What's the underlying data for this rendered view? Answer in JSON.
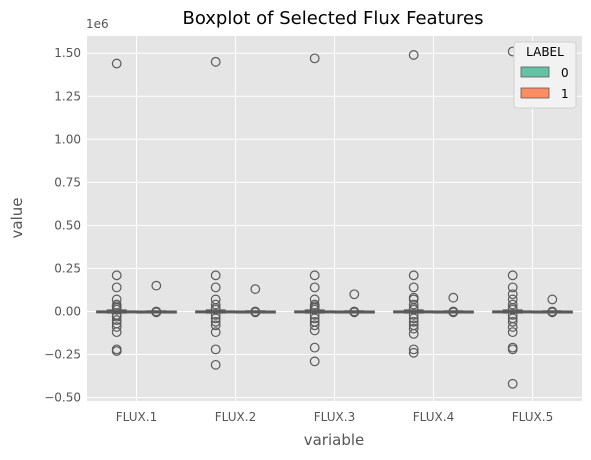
{
  "chart_data": {
    "type": "boxplot",
    "title": "Boxplot of Selected Flux Features",
    "xlabel": "variable",
    "ylabel": "value",
    "y_offset_label": "1e6",
    "ylim": [
      -0.52,
      1.6
    ],
    "yticks": [
      -0.5,
      -0.25,
      0.0,
      0.25,
      0.5,
      0.75,
      1.0,
      1.25,
      1.5
    ],
    "ytick_labels": [
      "−0.50",
      "−0.25",
      "0.00",
      "0.25",
      "0.50",
      "0.75",
      "1.00",
      "1.25",
      "1.50"
    ],
    "grid": true,
    "legend": {
      "title": "LABEL",
      "placement": "top-right",
      "entries": [
        {
          "label": "0",
          "color": "#66c2a5"
        },
        {
          "label": "1",
          "color": "#fc8d62"
        }
      ]
    },
    "categories": [
      "FLUX.1",
      "FLUX.2",
      "FLUX.3",
      "FLUX.4",
      "FLUX.5"
    ],
    "groups": [
      {
        "variable": "FLUX.1",
        "boxes": [
          {
            "label": "0",
            "q1": -0.002,
            "median": 0.0,
            "q3": 0.002,
            "whisker_low": -0.008,
            "whisker_high": 0.008,
            "outliers": [
              1.44,
              0.21,
              0.14,
              0.07,
              0.04,
              0.03,
              0.02,
              0.01,
              -0.02,
              -0.03,
              -0.05,
              -0.07,
              -0.09,
              -0.12,
              -0.22,
              -0.23
            ]
          },
          {
            "label": "1",
            "q1": -0.001,
            "median": 0.0,
            "q3": 0.001,
            "whisker_low": -0.003,
            "whisker_high": 0.003,
            "outliers": [
              0.15,
              0.0,
              -0.005
            ]
          }
        ]
      },
      {
        "variable": "FLUX.2",
        "boxes": [
          {
            "label": "0",
            "q1": -0.002,
            "median": 0.0,
            "q3": 0.002,
            "whisker_low": -0.008,
            "whisker_high": 0.008,
            "outliers": [
              1.45,
              0.21,
              0.14,
              0.07,
              0.04,
              0.02,
              0.01,
              -0.02,
              -0.04,
              -0.06,
              -0.08,
              -0.12,
              -0.22,
              -0.31
            ]
          },
          {
            "label": "1",
            "q1": -0.001,
            "median": 0.0,
            "q3": 0.001,
            "whisker_low": -0.003,
            "whisker_high": 0.003,
            "outliers": [
              0.13,
              0.0,
              -0.005
            ]
          }
        ]
      },
      {
        "variable": "FLUX.3",
        "boxes": [
          {
            "label": "0",
            "q1": -0.002,
            "median": 0.0,
            "q3": 0.002,
            "whisker_low": -0.008,
            "whisker_high": 0.008,
            "outliers": [
              1.47,
              0.21,
              0.14,
              0.07,
              0.04,
              0.03,
              0.02,
              0.01,
              -0.02,
              -0.04,
              -0.06,
              -0.08,
              -0.11,
              -0.21,
              -0.29
            ]
          },
          {
            "label": "1",
            "q1": -0.001,
            "median": 0.0,
            "q3": 0.001,
            "whisker_low": -0.003,
            "whisker_high": 0.003,
            "outliers": [
              0.1,
              0.0,
              -0.005
            ]
          }
        ]
      },
      {
        "variable": "FLUX.4",
        "boxes": [
          {
            "label": "0",
            "q1": -0.002,
            "median": 0.0,
            "q3": 0.002,
            "whisker_low": -0.008,
            "whisker_high": 0.008,
            "outliers": [
              1.49,
              0.21,
              0.14,
              0.08,
              0.07,
              0.04,
              0.02,
              0.01,
              -0.02,
              -0.04,
              -0.06,
              -0.08,
              -0.1,
              -0.13,
              -0.22,
              -0.24
            ]
          },
          {
            "label": "1",
            "q1": -0.001,
            "median": 0.0,
            "q3": 0.001,
            "whisker_low": -0.003,
            "whisker_high": 0.003,
            "outliers": [
              0.08,
              0.0,
              -0.005
            ]
          }
        ]
      },
      {
        "variable": "FLUX.5",
        "boxes": [
          {
            "label": "0",
            "q1": -0.002,
            "median": 0.0,
            "q3": 0.002,
            "whisker_low": -0.008,
            "whisker_high": 0.008,
            "outliers": [
              1.51,
              0.21,
              0.14,
              0.1,
              0.07,
              0.04,
              0.02,
              0.01,
              -0.02,
              -0.04,
              -0.06,
              -0.09,
              -0.12,
              -0.21,
              -0.22,
              -0.42
            ]
          },
          {
            "label": "1",
            "q1": -0.001,
            "median": 0.0,
            "q3": 0.001,
            "whisker_low": -0.003,
            "whisker_high": 0.003,
            "outliers": [
              0.07,
              0.0,
              -0.005
            ]
          }
        ]
      }
    ],
    "colors": {
      "plot_background": "#e5e5e5",
      "grid": "#ffffff",
      "box_edge": "#5a5a5a",
      "label_0": "#66c2a5",
      "label_1": "#fc8d62"
    }
  }
}
